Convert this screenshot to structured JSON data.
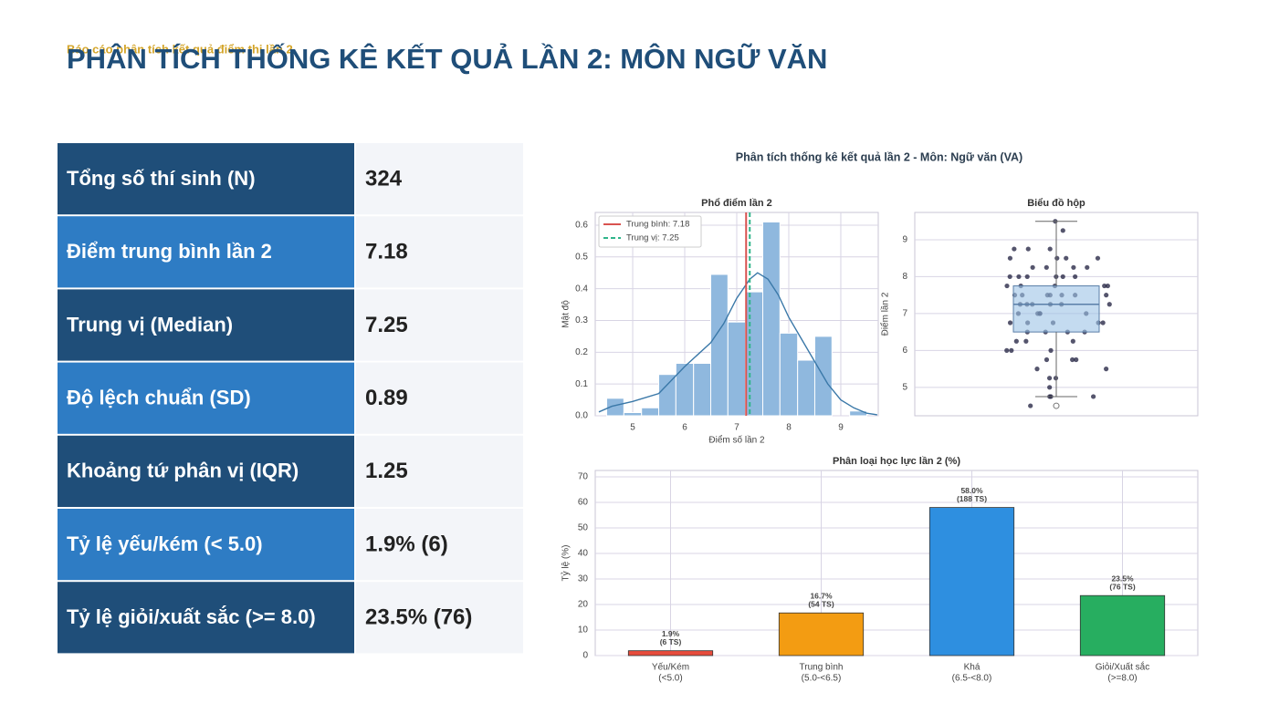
{
  "header": {
    "subtitle": "Báo cáo phân tích kết quả điểm thi lần 2",
    "title": "PHÂN TÍCH THỐNG KÊ KẾT QUẢ LẦN 2: MÔN NGỮ VĂN"
  },
  "table": {
    "rows": [
      [
        "Tổng số thí sinh (N)",
        "324"
      ],
      [
        "Điểm trung bình lần 2",
        "7.18"
      ],
      [
        "Trung vị (Median)",
        "7.25"
      ],
      [
        "Độ lệch chuẩn (SD)",
        "0.89"
      ],
      [
        "Khoảng tứ phân vị (IQR)",
        "1.25"
      ],
      [
        "Tỷ lệ yếu/kém (< 5.0)",
        "1.9% (6)"
      ],
      [
        "Tỷ lệ giỏi/xuất sắc (>= 8.0)",
        "23.5% (76)"
      ]
    ]
  },
  "figure_title": "Phân tích thống kê kết quả lần 2 - Môn: Ngữ văn (VA)",
  "chart_data": [
    {
      "type": "histogram",
      "title": "Phổ điểm lần 2",
      "xlabel": "Điểm số lần 2",
      "ylabel": "Mật độ",
      "bins": [
        4.5,
        4.83,
        5.17,
        5.5,
        5.83,
        6.17,
        6.5,
        6.83,
        7.17,
        7.5,
        7.83,
        8.17,
        8.5,
        8.83,
        9.17,
        9.5
      ],
      "values": [
        0.055,
        0.01,
        0.025,
        0.13,
        0.165,
        0.165,
        0.445,
        0.295,
        0.39,
        0.61,
        0.26,
        0.175,
        0.25,
        0,
        0.015
      ],
      "color": "#8fb8de",
      "kde": {
        "x": [
          4.35,
          4.6,
          5,
          5.5,
          6,
          6.5,
          6.75,
          7,
          7.25,
          7.4,
          7.6,
          7.8,
          8,
          8.25,
          8.5,
          8.75,
          9,
          9.25,
          9.5,
          9.7
        ],
        "y": [
          0.012,
          0.03,
          0.045,
          0.07,
          0.155,
          0.23,
          0.29,
          0.37,
          0.43,
          0.45,
          0.43,
          0.38,
          0.31,
          0.24,
          0.17,
          0.1,
          0.05,
          0.025,
          0.008,
          0.003
        ],
        "color": "#3a78a8"
      },
      "lines": [
        {
          "name": "Trung bình: 7.18",
          "value": 7.18,
          "color": "#d9534f",
          "dash": false
        },
        {
          "name": "Trung vị: 7.25",
          "value": 7.25,
          "color": "#2fb58a",
          "dash": true
        }
      ],
      "xlim": [
        4.28,
        9.72
      ],
      "ylim": [
        0,
        0.64
      ],
      "xticks": [
        5,
        6,
        7,
        8,
        9
      ],
      "yticks": [
        {
          "value": 0,
          "label": "0.0"
        },
        0.1,
        0.2,
        0.3,
        0.4,
        0.5,
        0.6
      ],
      "grid": true
    },
    {
      "type": "box",
      "title": "Biểu đồ hộp",
      "ylabel": "Điểm lần 2",
      "whisker_low": 4.75,
      "q1": 6.5,
      "median": 7.25,
      "q3": 7.75,
      "whisker_high": 9.5,
      "outliers": [
        4.5
      ],
      "color": "#9cc3e6",
      "point_color": "#1c1c3c",
      "points": [
        9.5,
        9.25,
        8.75,
        8.75,
        8.75,
        8.5,
        8.5,
        8.5,
        8.5,
        8.25,
        8.25,
        8.25,
        8.25,
        8,
        8,
        8,
        8,
        8,
        8,
        7.75,
        7.75,
        7.75,
        7.75,
        7.75,
        7.5,
        7.5,
        7.5,
        7.5,
        7.5,
        7.5,
        7.5,
        7.25,
        7.25,
        7.25,
        7.25,
        7.25,
        7.25,
        7,
        7,
        7,
        7,
        7,
        6.75,
        6.75,
        6.75,
        6.75,
        6.75,
        6.5,
        6.5,
        6.5,
        6.5,
        6.25,
        6.25,
        6.25,
        6,
        6,
        6,
        5.75,
        5.75,
        5.75,
        5.5,
        5.5,
        5.25,
        5.25,
        5,
        4.75,
        4.75,
        4.75,
        4.5
      ],
      "ylim": [
        4.23,
        9.74
      ],
      "yticks": [
        5,
        6,
        7,
        8,
        9
      ],
      "grid": true
    },
    {
      "type": "bar",
      "title": "Phân loại học lực lần 2 (%)",
      "ylabel": "Tỷ lệ (%)",
      "categories": [
        [
          "Yếu/Kém",
          "(<5.0)"
        ],
        [
          "Trung bình",
          "(5.0-<6.5)"
        ],
        [
          "Khá",
          "(6.5-<8.0)"
        ],
        [
          "Giỏi/Xuất sắc",
          "(>=8.0)"
        ]
      ],
      "values": [
        1.9,
        16.7,
        58.0,
        23.5
      ],
      "value_labels": [
        [
          "1.9%",
          "(6 TS)"
        ],
        [
          "16.7%",
          "(54 TS)"
        ],
        [
          "58.0%",
          "(188 TS)"
        ],
        [
          "23.5%",
          "(76 TS)"
        ]
      ],
      "colors": [
        "#e74c3c",
        "#f39c12",
        "#2e8fe0",
        "#27ae60"
      ],
      "ylim": [
        0,
        72.5
      ],
      "yticks": [
        0,
        10,
        20,
        30,
        40,
        50,
        60,
        70
      ],
      "grid": true
    }
  ]
}
